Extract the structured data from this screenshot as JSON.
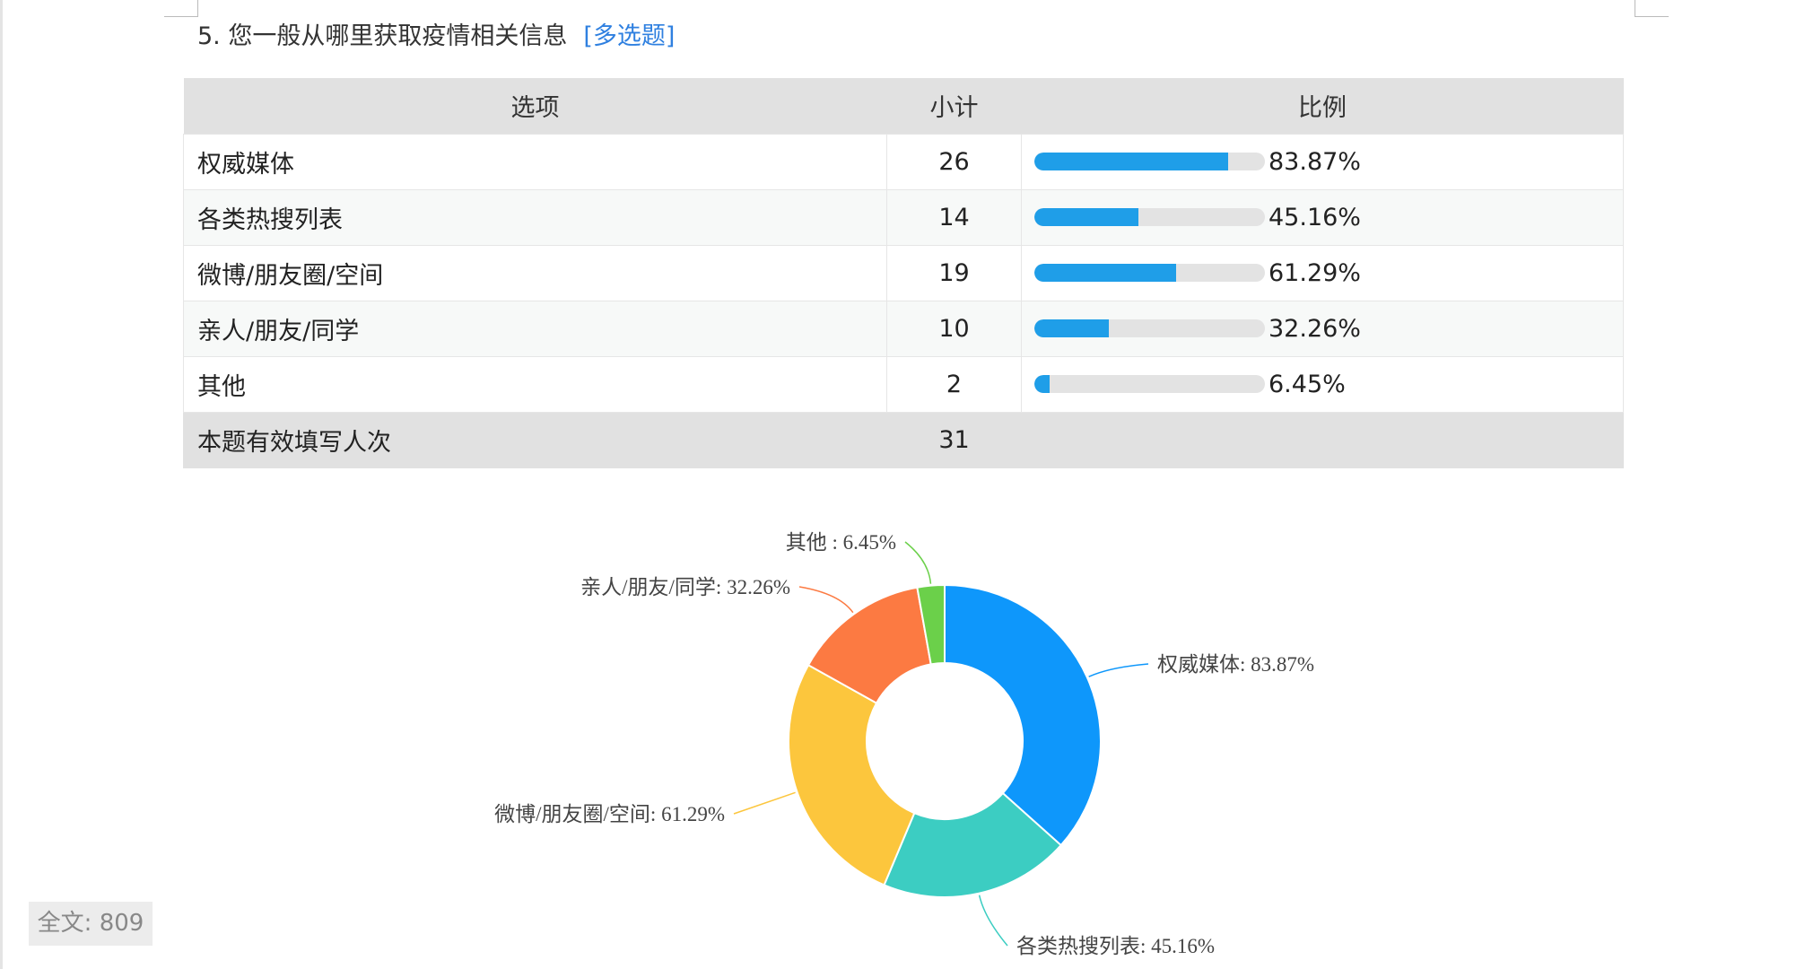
{
  "question": {
    "title": "5. 您一般从哪里获取疫情相关信息",
    "tag": "[多选题]"
  },
  "table": {
    "headers": [
      "选项",
      "小计",
      "比例"
    ],
    "rows": [
      {
        "option": "权威媒体",
        "count": "26",
        "percent": "83.87%",
        "fill": 83.87
      },
      {
        "option": "各类热搜列表",
        "count": "14",
        "percent": "45.16%",
        "fill": 45.16
      },
      {
        "option": "微博/朋友圈/空间",
        "count": "19",
        "percent": "61.29%",
        "fill": 61.29
      },
      {
        "option": "亲人/朋友/同学",
        "count": "10",
        "percent": "32.26%",
        "fill": 32.26
      },
      {
        "option": "其他",
        "count": "2",
        "percent": "6.45%",
        "fill": 6.45
      }
    ],
    "footer": {
      "label": "本题有效填写人次",
      "count": "31"
    }
  },
  "chart_data": {
    "type": "pie",
    "donut": true,
    "categories": [
      "权威媒体",
      "各类热搜列表",
      "微博/朋友圈/空间",
      "亲人/朋友/同学",
      "其他"
    ],
    "values": [
      26,
      14,
      19,
      10,
      2
    ],
    "labels": [
      "权威媒体: 83.87%",
      "各类热搜列表: 45.16%",
      "微博/朋友圈/空间: 61.29%",
      "亲人/朋友/同学: 32.26%",
      "其他 : 6.45%"
    ],
    "colors": [
      "#0e97fb",
      "#3ccdc2",
      "#fcc63d",
      "#fc7a42",
      "#6bd04a"
    ],
    "bar_color": "#1f9ee8"
  },
  "footer": {
    "word_count": "全文: 809"
  }
}
